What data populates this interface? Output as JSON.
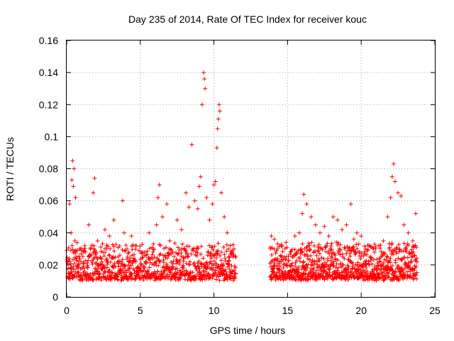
{
  "chart_data": {
    "type": "scatter",
    "title": "Day 235 of 2014, Rate Of TEC Index for receiver kouc",
    "xlabel": "GPS time / hours",
    "ylabel": "ROTI / TECUs",
    "xlim": [
      0,
      25
    ],
    "ylim": [
      0,
      0.16
    ],
    "xticks": [
      0,
      5,
      10,
      15,
      20,
      25
    ],
    "yticks": [
      0,
      0.02,
      0.04,
      0.06,
      0.08,
      0.1,
      0.12,
      0.14,
      0.16
    ],
    "ytick_labels": [
      "0",
      "0.02",
      "0.04",
      "0.06",
      "0.08",
      "0.1",
      "0.12",
      "0.14",
      "0.16"
    ],
    "xtick_labels": [
      "0",
      "5",
      "10",
      "15",
      "20",
      "25"
    ],
    "grid": true,
    "marker": "+",
    "color": "#ff0000",
    "series": [
      {
        "x": [
          0.1,
          0.2,
          0.3,
          0.35,
          0.4,
          0.45,
          0.5,
          0.55,
          0.6,
          0.7,
          0.8,
          1.0,
          1.2,
          1.5,
          1.8,
          1.9,
          2.0,
          2.1,
          2.3,
          2.6,
          2.9,
          3.2,
          3.5,
          3.8,
          3.9,
          4.1,
          4.4,
          4.7,
          5.0,
          5.3,
          5.6,
          5.9,
          6.1,
          6.2,
          6.3,
          6.5,
          6.8,
          7.0,
          7.2,
          7.5,
          7.8,
          8.1,
          8.3,
          8.5,
          8.7,
          8.9,
          9.0,
          9.1,
          9.2,
          9.3,
          9.35,
          9.4,
          9.5,
          9.7,
          9.9,
          10.0,
          10.1,
          10.2,
          10.25,
          10.3,
          10.35,
          10.4,
          10.5,
          10.7,
          10.9,
          11.1,
          11.3,
          13.9,
          14.1,
          14.3,
          14.6,
          14.9,
          15.2,
          15.5,
          15.8,
          16.0,
          16.1,
          16.3,
          16.6,
          16.9,
          17.2,
          17.5,
          17.8,
          18.1,
          18.4,
          18.7,
          19.0,
          19.3,
          19.5,
          19.7,
          20.0,
          20.3,
          20.6,
          20.9,
          21.2,
          21.5,
          21.8,
          22.0,
          22.1,
          22.2,
          22.3,
          22.5,
          22.7,
          22.9,
          23.2,
          23.5,
          23.7
        ],
        "y": [
          0.018,
          0.058,
          0.04,
          0.073,
          0.085,
          0.069,
          0.08,
          0.035,
          0.062,
          0.025,
          0.02,
          0.03,
          0.016,
          0.045,
          0.065,
          0.074,
          0.028,
          0.035,
          0.02,
          0.042,
          0.038,
          0.048,
          0.025,
          0.06,
          0.04,
          0.03,
          0.038,
          0.022,
          0.018,
          0.028,
          0.04,
          0.03,
          0.045,
          0.062,
          0.07,
          0.05,
          0.058,
          0.035,
          0.028,
          0.048,
          0.042,
          0.065,
          0.056,
          0.095,
          0.06,
          0.055,
          0.069,
          0.075,
          0.12,
          0.14,
          0.136,
          0.13,
          0.062,
          0.048,
          0.058,
          0.07,
          0.072,
          0.093,
          0.105,
          0.111,
          0.12,
          0.116,
          0.065,
          0.05,
          0.04,
          0.032,
          0.025,
          0.038,
          0.036,
          0.03,
          0.025,
          0.034,
          0.028,
          0.038,
          0.04,
          0.052,
          0.064,
          0.058,
          0.05,
          0.045,
          0.04,
          0.044,
          0.038,
          0.05,
          0.048,
          0.042,
          0.045,
          0.058,
          0.036,
          0.04,
          0.038,
          0.03,
          0.025,
          0.028,
          0.032,
          0.035,
          0.05,
          0.062,
          0.075,
          0.083,
          0.072,
          0.065,
          0.063,
          0.045,
          0.04,
          0.035,
          0.052
        ]
      }
    ],
    "band_note_free": true,
    "dense_bands": [
      {
        "x_from": 0.0,
        "x_to": 11.5,
        "y_low": 0.006,
        "y_high": 0.034
      },
      {
        "x_from": 13.8,
        "x_to": 23.8,
        "y_low": 0.006,
        "y_high": 0.034
      }
    ]
  }
}
